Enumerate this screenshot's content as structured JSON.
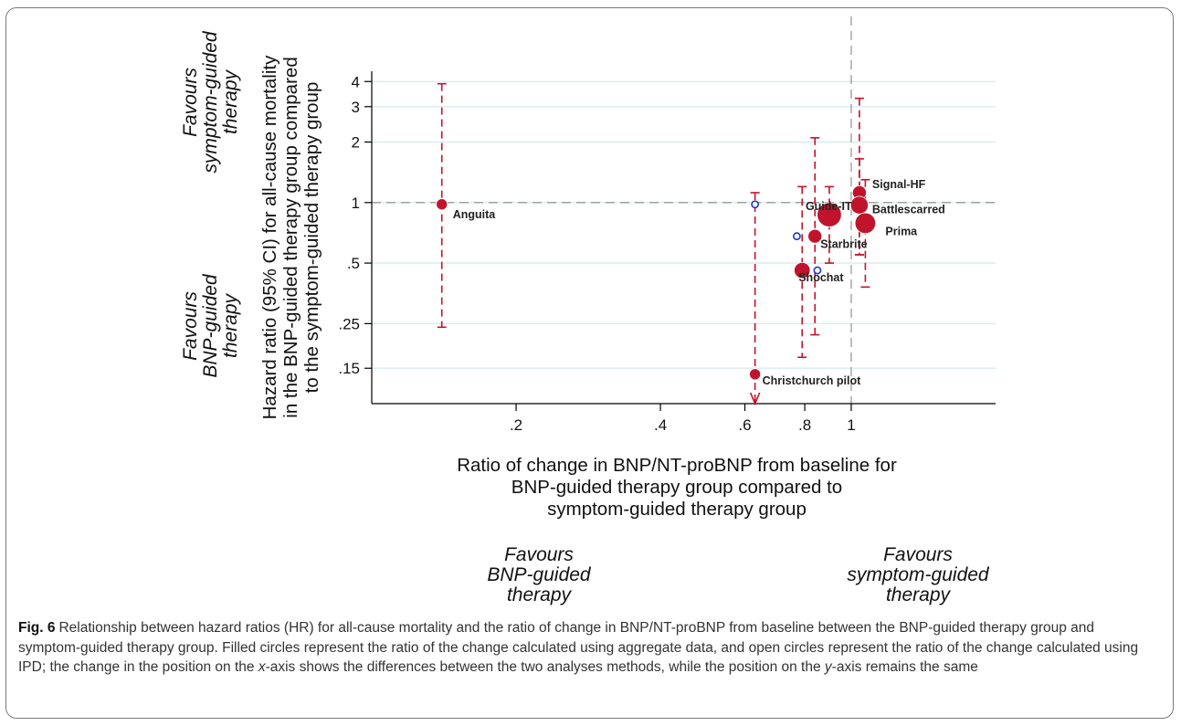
{
  "figure": {
    "label": "Fig. 6",
    "caption_parts": [
      "Relationship between hazard ratios (HR) for all-cause mortality and the ratio of change in BNP/NT-proBNP from baseline between the BNP-guided therapy group and symptom-guided therapy group. Filled circles represent the ratio of the change calculated using aggregate data, and open circles represent the ratio of the change calculated using IPD; the change in the position on the ",
      "x",
      "-axis shows the differences between the two analyses methods, while the position on the ",
      "y",
      "-axis remains the same"
    ]
  },
  "annotations": {
    "y_top": [
      "Favours",
      "symptom-guided",
      "therapy"
    ],
    "y_bottom": [
      "Favours",
      "BNP-guided",
      "therapy"
    ],
    "x_left": [
      "Favours",
      "BNP-guided",
      "therapy"
    ],
    "x_right": [
      "Favours",
      "symptom-guided",
      "therapy"
    ]
  },
  "chart_data": {
    "type": "scatter",
    "ylabel_lines": [
      "Hazard ratio (95% CI) for all-cause mortality",
      "in the BNP-guided therapy group compared",
      "to the symptom-guided therapy group"
    ],
    "xlabel_lines": [
      "Ratio of change in BNP/NT-proBNP from baseline for",
      "BNP-guided therapy group compared to",
      "symptom-guided therapy group"
    ],
    "x_scale": "log",
    "y_scale": "log",
    "xlim": [
      0.1,
      2.0
    ],
    "ylim": [
      0.1,
      4.5
    ],
    "x_ticks": [
      {
        "v": 0.2,
        "label": ".2"
      },
      {
        "v": 0.4,
        "label": ".4"
      },
      {
        "v": 0.6,
        "label": ".6"
      },
      {
        "v": 0.8,
        "label": ".8"
      },
      {
        "v": 1,
        "label": "1"
      }
    ],
    "y_ticks": [
      {
        "v": 0.15,
        "label": ".15"
      },
      {
        "v": 0.25,
        "label": ".25"
      },
      {
        "v": 0.5,
        "label": ".5"
      },
      {
        "v": 1,
        "label": "1"
      },
      {
        "v": 2,
        "label": "2"
      },
      {
        "v": 3,
        "label": "3"
      },
      {
        "v": 4,
        "label": "4"
      }
    ],
    "gridlines": "horizontal",
    "reference_lines": {
      "x": 1,
      "y": 1
    },
    "colors": {
      "filled": "#c0142c",
      "open": "#1f37c8",
      "ci": "#c0142c",
      "grid": "#d8ecec",
      "ref": "#999999"
    },
    "studies": [
      {
        "name": "Anguita",
        "x": 0.14,
        "hr": 0.98,
        "ci": [
          0.24,
          3.9
        ],
        "weight": 1
      },
      {
        "name": "Guide-IT",
        "x": 0.9,
        "hr": 0.87,
        "ci": [
          0.5,
          1.2
        ],
        "weight": 9
      },
      {
        "name": "Signal-HF",
        "x": 1.04,
        "hr": 1.12,
        "ci": [
          0.55,
          3.3
        ],
        "weight": 2
      },
      {
        "name": "Battlescarred",
        "x": 1.04,
        "hr": 0.97,
        "ci": [
          0.55,
          1.65
        ],
        "weight": 4
      },
      {
        "name": "Prima",
        "x": 1.07,
        "hr": 0.79,
        "ci": [
          0.38,
          1.3
        ],
        "weight": 6
      },
      {
        "name": "Starbrite",
        "x": 0.84,
        "hr": 0.68,
        "ci": [
          0.22,
          2.1
        ],
        "weight": 2
      },
      {
        "name": "Shochat",
        "x": 0.79,
        "hr": 0.46,
        "ci": [
          0.17,
          1.2
        ],
        "weight": 3
      },
      {
        "name": "Christchurch pilot",
        "x": 0.63,
        "hr": 0.14,
        "ci": [
          0.05,
          1.12
        ],
        "weight": 1
      }
    ],
    "ipd_points": [
      {
        "x": 0.63,
        "hr": 0.98
      },
      {
        "x": 0.77,
        "hr": 0.68
      },
      {
        "x": 0.85,
        "hr": 0.46
      }
    ]
  }
}
